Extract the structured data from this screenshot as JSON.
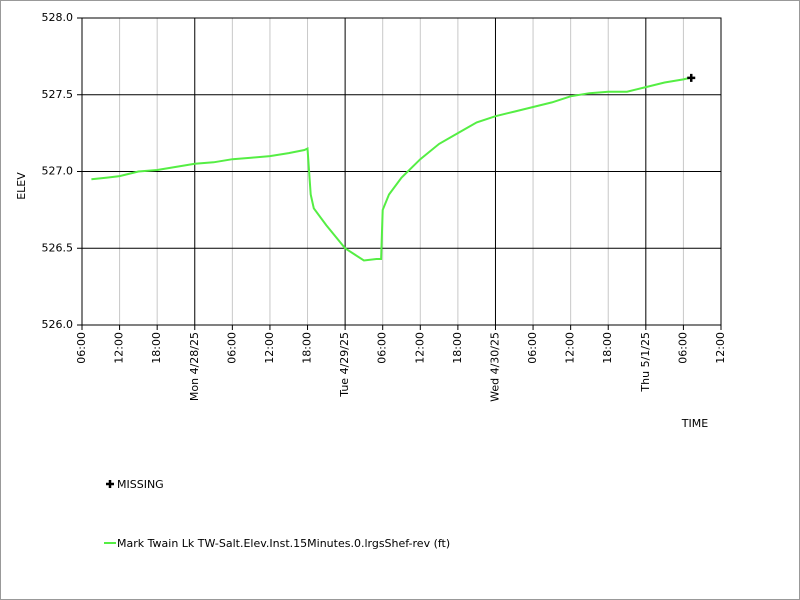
{
  "chart_data": {
    "type": "line",
    "y_label": "ELEV",
    "x_label": "TIME",
    "xlim": [
      "2025-04-27T06:00",
      "2025-05-01T12:00"
    ],
    "xticks": [
      {
        "value": "2025-04-27T06:00",
        "label": "06:00"
      },
      {
        "value": "2025-04-27T12:00",
        "label": "12:00"
      },
      {
        "value": "2025-04-27T18:00",
        "label": "18:00"
      },
      {
        "value": "2025-04-28T00:00",
        "label": "Mon 4/28/25"
      },
      {
        "value": "2025-04-28T06:00",
        "label": "06:00"
      },
      {
        "value": "2025-04-28T12:00",
        "label": "12:00"
      },
      {
        "value": "2025-04-28T18:00",
        "label": "18:00"
      },
      {
        "value": "2025-04-29T00:00",
        "label": "Tue 4/29/25"
      },
      {
        "value": "2025-04-29T06:00",
        "label": "06:00"
      },
      {
        "value": "2025-04-29T12:00",
        "label": "12:00"
      },
      {
        "value": "2025-04-29T18:00",
        "label": "18:00"
      },
      {
        "value": "2025-04-30T00:00",
        "label": "Wed 4/30/25"
      },
      {
        "value": "2025-04-30T06:00",
        "label": "06:00"
      },
      {
        "value": "2025-04-30T12:00",
        "label": "12:00"
      },
      {
        "value": "2025-04-30T18:00",
        "label": "18:00"
      },
      {
        "value": "2025-05-01T00:00",
        "label": "Thu 5/1/25"
      },
      {
        "value": "2025-05-01T06:00",
        "label": "06:00"
      },
      {
        "value": "2025-05-01T12:00",
        "label": "12:00"
      }
    ],
    "ylim": [
      526.0,
      528.0
    ],
    "yticks": [
      {
        "value": 526.0,
        "label": "526.0"
      },
      {
        "value": 526.5,
        "label": "526.5"
      },
      {
        "value": 527.0,
        "label": "527.0"
      },
      {
        "value": 527.5,
        "label": "527.5"
      },
      {
        "value": 528.0,
        "label": "528.0"
      }
    ],
    "grid": true,
    "series": [
      {
        "name": "Mark Twain Lk TW-Salt.Elev.Inst.15Minutes.0.lrgsShef-rev (ft)",
        "color": "#55ee44",
        "x": [
          "2025-04-27T07:30",
          "2025-04-27T10:00",
          "2025-04-27T12:00",
          "2025-04-27T15:00",
          "2025-04-27T18:00",
          "2025-04-27T21:00",
          "2025-04-28T00:00",
          "2025-04-28T03:00",
          "2025-04-28T06:00",
          "2025-04-28T09:00",
          "2025-04-28T12:00",
          "2025-04-28T15:00",
          "2025-04-28T17:30",
          "2025-04-28T18:00",
          "2025-04-28T18:30",
          "2025-04-28T19:00",
          "2025-04-28T21:00",
          "2025-04-29T00:00",
          "2025-04-29T01:30",
          "2025-04-29T03:00",
          "2025-04-29T05:00",
          "2025-04-29T05:45",
          "2025-04-29T06:00",
          "2025-04-29T07:00",
          "2025-04-29T09:00",
          "2025-04-29T12:00",
          "2025-04-29T15:00",
          "2025-04-29T18:00",
          "2025-04-29T21:00",
          "2025-04-30T00:00",
          "2025-04-30T03:00",
          "2025-04-30T06:00",
          "2025-04-30T09:00",
          "2025-04-30T12:00",
          "2025-04-30T15:00",
          "2025-04-30T18:00",
          "2025-04-30T21:00",
          "2025-05-01T00:00",
          "2025-05-01T03:00",
          "2025-05-01T06:00",
          "2025-05-01T07:00"
        ],
        "values": [
          526.95,
          526.96,
          526.97,
          527.0,
          527.01,
          527.03,
          527.05,
          527.06,
          527.08,
          527.09,
          527.1,
          527.12,
          527.14,
          527.15,
          526.85,
          526.76,
          526.65,
          526.5,
          526.46,
          526.42,
          526.43,
          526.43,
          526.75,
          526.85,
          526.96,
          527.08,
          527.18,
          527.25,
          527.32,
          527.36,
          527.39,
          527.42,
          527.45,
          527.49,
          527.51,
          527.52,
          527.52,
          527.55,
          527.58,
          527.6,
          527.61
        ]
      }
    ],
    "missing": {
      "name": "MISSING",
      "color": "#000000",
      "x": [
        "2025-05-01T07:15"
      ],
      "values": [
        527.61
      ]
    }
  }
}
